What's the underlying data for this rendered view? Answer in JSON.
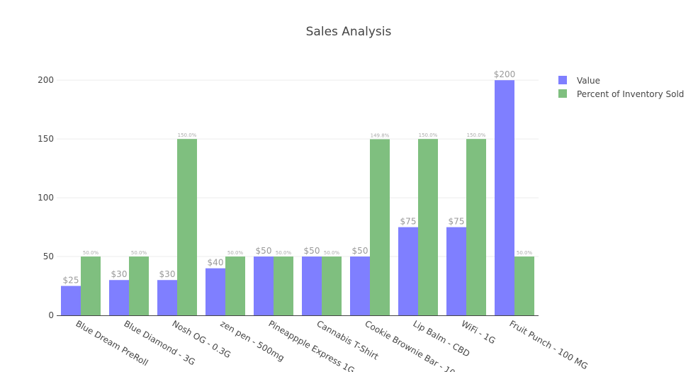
{
  "chart_data": {
    "type": "bar",
    "title": "Sales Analysis",
    "xlabel": "",
    "ylabel": "",
    "ylim": [
      0,
      220
    ],
    "yticks": [
      0,
      50,
      100,
      150,
      200
    ],
    "grid": true,
    "legend_position": "top-right",
    "categories": [
      "Blue Dream PreRoll",
      "Blue Diamond - 3G",
      "Nosh OG - 0.3G",
      "zen pen - 500mg",
      "Pineappple Express 1G",
      "Cannabis T-Shirt",
      "Cookie Brownie Bar - 10",
      "Lip Balm - CBD",
      "WiFi - 1G",
      "Fruit Punch - 100 MG"
    ],
    "series": [
      {
        "name": "Value",
        "color": "#7f7fff",
        "values": [
          25,
          30,
          30,
          40,
          50,
          50,
          50,
          75,
          75,
          200
        ],
        "labels": [
          "$25",
          "$30",
          "$30",
          "$40",
          "$50",
          "$50",
          "$50",
          "$75",
          "$75",
          "$200"
        ]
      },
      {
        "name": "Percent of Inventory Sold",
        "color": "#7fbf7f",
        "values": [
          50,
          50,
          150,
          50,
          50,
          50,
          149.8,
          150,
          150,
          50
        ],
        "labels": [
          "50.0%",
          "50.0%",
          "150.0%",
          "50.0%",
          "50.0%",
          "50.0%",
          "149.8%",
          "150.0%",
          "150.0%",
          "50.0%"
        ]
      }
    ]
  }
}
